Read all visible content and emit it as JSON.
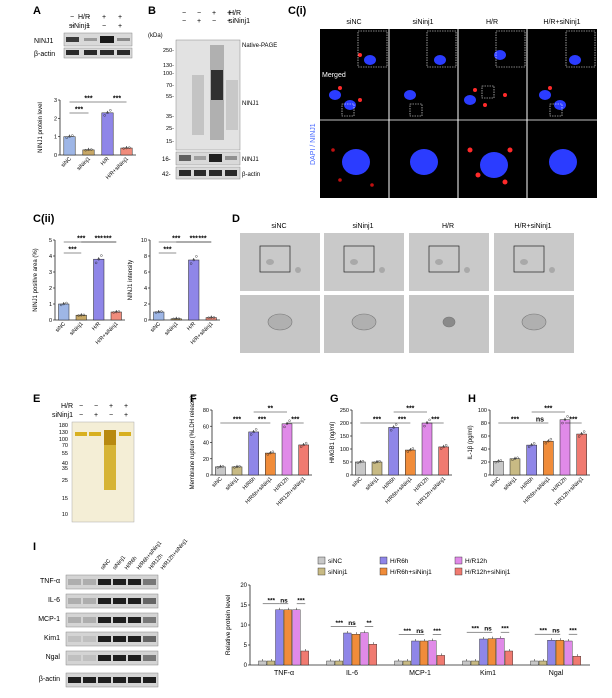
{
  "colors": {
    "siNC": "#9eb6e6",
    "siNinj1": "#c8a866",
    "HR": "#8f86e8",
    "HR_siNinj1": "#f08c7c",
    "siNC_I": "#c8c8c8",
    "siNinj1_I": "#c8ba84",
    "HR6": "#8f86e8",
    "HR6_si": "#f08c3a",
    "HR12": "#e08ae8",
    "HR12_si": "#f07a70",
    "ink": "#222222",
    "sig": "#111111"
  },
  "panelA": {
    "label": "A",
    "row_labels": [
      "H/R",
      "siNinj1"
    ],
    "row_signs": [
      [
        "−",
        "−",
        "+",
        "+"
      ],
      [
        "−",
        "+",
        "−",
        "+"
      ]
    ],
    "blots": [
      "NINJ1",
      "β-actin"
    ],
    "chart_data": {
      "type": "bar",
      "title": "",
      "ylabel": "NINJ1 protein level",
      "xlabel": "",
      "categories": [
        "siNC",
        "siNinj1",
        "H/R",
        "H/R+siNinj1"
      ],
      "values": [
        1.0,
        0.28,
        2.3,
        0.38
      ],
      "ylim": [
        0,
        3
      ],
      "yticks": [
        "0",
        "1",
        "2",
        "3"
      ],
      "significance": [
        "***",
        "***",
        "***"
      ]
    }
  },
  "panelB": {
    "label": "B",
    "row_labels": [
      "H/R",
      "siNinj1"
    ],
    "row_signs": [
      [
        "−",
        "−",
        "+",
        "+"
      ],
      [
        "−",
        "+",
        "−",
        "+"
      ]
    ],
    "unit": "(kDa)",
    "markers_top": [
      "250-",
      "130-",
      "100-",
      "70-",
      "55-",
      "35-",
      "25-",
      "15-"
    ],
    "markers_bottom": [
      "16-",
      "42-"
    ],
    "notes": [
      "Native-PAGE",
      "NINJ1",
      "NINJ1",
      "β-actin"
    ]
  },
  "panelCi": {
    "label": "C(i)",
    "columns": [
      "siNC",
      "siNinj1",
      "H/R",
      "H/R+siNinj1"
    ],
    "merged": "Merged",
    "side_label": "DAPI / NINJ1"
  },
  "panelCii": {
    "label": "C(ii)",
    "charts": [
      {
        "type": "bar",
        "ylabel": "NINJ1 positive area (%)",
        "categories": [
          "siNC",
          "siNinj1",
          "H/R",
          "H/R+siNinj1"
        ],
        "values": [
          1.0,
          0.3,
          3.8,
          0.5
        ],
        "ylim": [
          0,
          5
        ],
        "yticks": [
          "0",
          "1",
          "2",
          "3",
          "4",
          "5"
        ],
        "significance": [
          "***",
          "***",
          "***",
          "***"
        ]
      },
      {
        "type": "bar",
        "ylabel": "NINJ1 intensity",
        "categories": [
          "siNC",
          "siNinj1",
          "H/R",
          "H/R+siNinj1"
        ],
        "values": [
          1.0,
          0.15,
          7.5,
          0.3
        ],
        "ylim": [
          0,
          10
        ],
        "yticks": [
          "0",
          "2",
          "4",
          "6",
          "8",
          "10"
        ],
        "significance": [
          "***",
          "***",
          "***",
          "***"
        ]
      }
    ]
  },
  "panelD": {
    "label": "D",
    "columns": [
      "siNC",
      "siNinj1",
      "H/R",
      "H/R+siNinj1"
    ]
  },
  "panelE": {
    "label": "E",
    "row_labels": [
      "H/R",
      "siNinj1"
    ],
    "row_signs": [
      [
        "−",
        "−",
        "+",
        "+"
      ],
      [
        "−",
        "+",
        "−",
        "+"
      ]
    ],
    "markers": [
      "180",
      "130",
      "100",
      "70",
      "55",
      "40",
      "35",
      "25",
      "15",
      "10"
    ]
  },
  "panelF": {
    "label": "F",
    "chart_data": {
      "type": "bar",
      "ylabel": "Membrane rupture (%LDH release)",
      "categories": [
        "siNC",
        "siNinj1",
        "H/R6h",
        "H/R6h+siNinj1",
        "H/R12h",
        "H/R12h+siNinj1"
      ],
      "values": [
        10,
        10,
        53,
        27,
        63,
        37
      ],
      "ylim": [
        0,
        80
      ],
      "yticks": [
        "0",
        "20",
        "40",
        "60",
        "80"
      ],
      "significance": [
        "***",
        "***",
        "**",
        "***"
      ]
    }
  },
  "panelG": {
    "label": "G",
    "chart_data": {
      "type": "bar",
      "ylabel": "HMGB1 (ng/ml)",
      "categories": [
        "siNC",
        "siNinj1",
        "H/R6h",
        "H/R6h+siNinj1",
        "H/R12h",
        "H/R12h+siNinj1"
      ],
      "values": [
        50,
        50,
        183,
        96,
        200,
        108
      ],
      "ylim": [
        0,
        250
      ],
      "yticks": [
        "0",
        "50",
        "100",
        "150",
        "200",
        "250"
      ],
      "significance": [
        "***",
        "***",
        "***",
        "***"
      ]
    }
  },
  "panelH": {
    "label": "H",
    "chart_data": {
      "type": "bar",
      "ylabel": "IL-1β (pg/ml)",
      "categories": [
        "siNC",
        "siNinj1",
        "H/R6h",
        "H/R6h+siNinj1",
        "H/R12h",
        "H/R12h+siNinj1"
      ],
      "values": [
        21,
        25,
        46,
        52,
        85,
        63
      ],
      "ylim": [
        0,
        100
      ],
      "yticks": [
        "0",
        "20",
        "40",
        "60",
        "80",
        "100"
      ],
      "significance": [
        "***",
        "ns",
        "***",
        "***"
      ]
    }
  },
  "panelI": {
    "label": "I",
    "lane_labels": [
      "siNC",
      "siNinj1",
      "H/R6h",
      "H/R6h+siNinj1",
      "H/R12h",
      "H/R12h+siNinj1"
    ],
    "blots": [
      "TNF-α",
      "IL-6",
      "MCP-1",
      "Kim1",
      "Ngal",
      "β-actin"
    ],
    "chart_data": {
      "type": "bar",
      "ylabel": "Relative protein level",
      "categories": [
        "TNF-α",
        "IL-6",
        "MCP-1",
        "Kim1",
        "Ngal"
      ],
      "ylim": [
        0,
        20
      ],
      "yticks": [
        "0",
        "5",
        "10",
        "15",
        "20"
      ],
      "series": [
        {
          "name": "siNC",
          "values": [
            1.0,
            1.0,
            1.0,
            1.0,
            1.0
          ]
        },
        {
          "name": "siNinj1",
          "values": [
            1.0,
            1.0,
            1.0,
            1.0,
            1.0
          ]
        },
        {
          "name": "H/R6h",
          "values": [
            13.8,
            8.0,
            6.0,
            6.5,
            6.2
          ]
        },
        {
          "name": "H/R6h+siNinj1",
          "values": [
            13.8,
            7.7,
            6.0,
            6.6,
            6.2
          ]
        },
        {
          "name": "H/R12h",
          "values": [
            13.8,
            8.1,
            6.1,
            6.7,
            6.0
          ]
        },
        {
          "name": "H/R12h+siNinj1",
          "values": [
            3.5,
            5.2,
            2.4,
            3.5,
            2.2
          ]
        }
      ],
      "significance": [
        [
          "***",
          "ns",
          "***"
        ],
        [
          "***",
          "ns",
          "**"
        ],
        [
          "***",
          "ns",
          "***"
        ],
        [
          "***",
          "ns",
          "***"
        ],
        [
          "***",
          "ns",
          "***"
        ]
      ]
    }
  }
}
